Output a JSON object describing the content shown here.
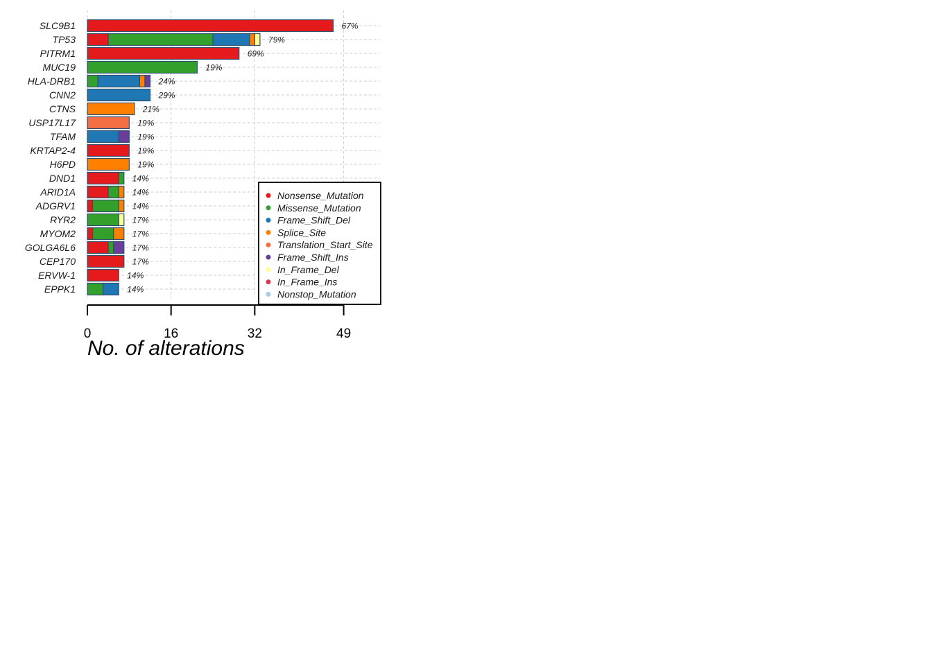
{
  "chart_data": {
    "type": "bar",
    "orientation": "horizontal",
    "stacked": true,
    "title": "",
    "xlabel": "No. of alterations",
    "ylabel": "",
    "xlim": [
      0,
      55
    ],
    "xticks": [
      0,
      16,
      32,
      49
    ],
    "grid": true,
    "legend_position": "bottom-right",
    "categories": [
      "SLC9B1",
      "TP53",
      "PITRM1",
      "MUC19",
      "HLA-DRB1",
      "CNN2",
      "CTNS",
      "USP17L17",
      "TFAM",
      "KRTAP2-4",
      "H6PD",
      "DND1",
      "ARID1A",
      "ADGRV1",
      "RYR2",
      "MYOM2",
      "GOLGA6L6",
      "CEP170",
      "ERVW-1",
      "EPPK1"
    ],
    "percent_labels": [
      "67%",
      "79%",
      "69%",
      "19%",
      "24%",
      "29%",
      "21%",
      "19%",
      "19%",
      "19%",
      "19%",
      "14%",
      "14%",
      "14%",
      "17%",
      "17%",
      "17%",
      "17%",
      "14%",
      "14%"
    ],
    "series": [
      {
        "name": "Nonsense_Mutation",
        "color": "#E41A1C",
        "values": [
          47,
          4,
          29,
          0,
          0,
          0,
          0,
          0,
          0,
          8,
          0,
          6,
          4,
          1,
          0,
          1,
          4,
          7,
          6,
          0
        ]
      },
      {
        "name": "Missense_Mutation",
        "color": "#33A02C",
        "values": [
          0,
          20,
          0,
          21,
          2,
          0,
          0,
          0,
          0,
          0,
          0,
          1,
          2,
          5,
          6,
          4,
          1,
          0,
          0,
          3
        ]
      },
      {
        "name": "Frame_Shift_Del",
        "color": "#1F78B4",
        "values": [
          0,
          7,
          0,
          0,
          8,
          12,
          0,
          0,
          6,
          0,
          0,
          0,
          0,
          0,
          0,
          0,
          0,
          0,
          0,
          3
        ]
      },
      {
        "name": "Splice_Site",
        "color": "#FF7F00",
        "values": [
          0,
          1,
          0,
          0,
          1,
          0,
          9,
          0,
          0,
          0,
          8,
          0,
          1,
          1,
          0,
          2,
          0,
          0,
          0,
          0
        ]
      },
      {
        "name": "Translation_Start_Site",
        "color": "#F46D43",
        "values": [
          0,
          0,
          0,
          0,
          0,
          0,
          0,
          8,
          0,
          0,
          0,
          0,
          0,
          0,
          0,
          0,
          0,
          0,
          0,
          0
        ]
      },
      {
        "name": "Frame_Shift_Ins",
        "color": "#6A3D9A",
        "values": [
          0,
          0,
          0,
          0,
          1,
          0,
          0,
          0,
          2,
          0,
          0,
          0,
          0,
          0,
          0,
          0,
          2,
          0,
          0,
          0
        ]
      },
      {
        "name": "In_Frame_Del",
        "color": "#FFFF99",
        "values": [
          0,
          1,
          0,
          0,
          0,
          0,
          0,
          0,
          0,
          0,
          0,
          0,
          0,
          0,
          1,
          0,
          0,
          0,
          0,
          0
        ]
      },
      {
        "name": "In_Frame_Ins",
        "color": "#D53E4F",
        "values": [
          0,
          0,
          0,
          0,
          0,
          0,
          0,
          0,
          0,
          0,
          0,
          0,
          0,
          0,
          0,
          0,
          0,
          0,
          0,
          0
        ]
      },
      {
        "name": "Nonstop_Mutation",
        "color": "#A6CEE3",
        "values": [
          0,
          0,
          0,
          0,
          0,
          0,
          0,
          0,
          0,
          0,
          0,
          0,
          0,
          0,
          0,
          0,
          0,
          0,
          0,
          0
        ]
      }
    ]
  }
}
